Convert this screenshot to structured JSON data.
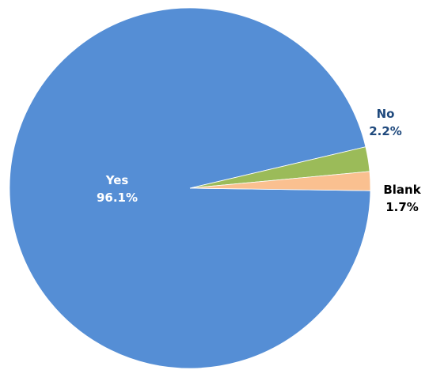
{
  "chart_data": {
    "type": "pie",
    "slices": [
      {
        "label": "Yes",
        "value": 96.1,
        "value_label": "96.1%",
        "color": "#558ED5",
        "label_color": "#FFFFFF"
      },
      {
        "label": "No",
        "value": 2.2,
        "value_label": "2.2%",
        "color": "#9BBB59",
        "label_color": "#1F497D"
      },
      {
        "label": "Blank",
        "value": 1.7,
        "value_label": "1.7%",
        "color": "#FAC090",
        "label_color": "#000000"
      }
    ],
    "title": "",
    "legend": "none",
    "start": "3 o'clock, counter-clockwise"
  }
}
